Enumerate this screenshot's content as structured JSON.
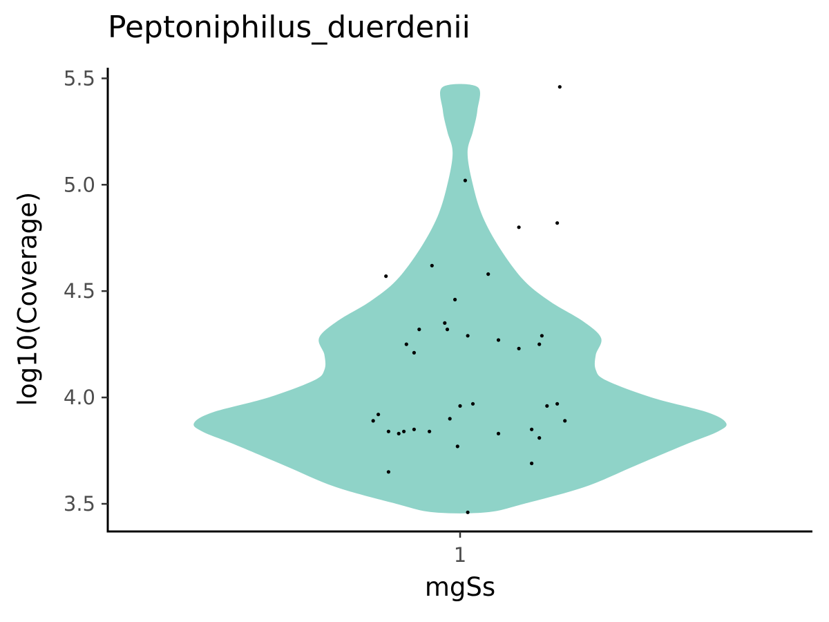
{
  "chart_data": {
    "type": "violin",
    "title": "Peptoniphilus_duerdenii",
    "xlabel": "mgSs",
    "ylabel": "log10(Coverage)",
    "categories": [
      "1"
    ],
    "ylim": [
      3.37,
      5.55
    ],
    "yticks": [
      3.5,
      4.0,
      4.5,
      5.0,
      5.5
    ],
    "ytick_labels": [
      "3.5",
      "4.0",
      "4.5",
      "5.0",
      "5.5"
    ],
    "fill_color": "#8fd3c8",
    "point_color": "#000000",
    "grid": false,
    "legend": "none",
    "density_profile": [
      {
        "y": 3.46,
        "w": 0.1
      },
      {
        "y": 3.5,
        "w": 0.24
      },
      {
        "y": 3.58,
        "w": 0.47
      },
      {
        "y": 3.68,
        "w": 0.66
      },
      {
        "y": 3.78,
        "w": 0.85
      },
      {
        "y": 3.84,
        "w": 0.97
      },
      {
        "y": 3.88,
        "w": 1.0
      },
      {
        "y": 3.93,
        "w": 0.93
      },
      {
        "y": 4.0,
        "w": 0.72
      },
      {
        "y": 4.08,
        "w": 0.55
      },
      {
        "y": 4.13,
        "w": 0.51
      },
      {
        "y": 4.2,
        "w": 0.51
      },
      {
        "y": 4.28,
        "w": 0.53
      },
      {
        "y": 4.36,
        "w": 0.46
      },
      {
        "y": 4.45,
        "w": 0.34
      },
      {
        "y": 4.55,
        "w": 0.24
      },
      {
        "y": 4.7,
        "w": 0.15
      },
      {
        "y": 4.85,
        "w": 0.085
      },
      {
        "y": 5.0,
        "w": 0.048
      },
      {
        "y": 5.15,
        "w": 0.028
      },
      {
        "y": 5.25,
        "w": 0.048
      },
      {
        "y": 5.35,
        "w": 0.065
      },
      {
        "y": 5.46,
        "w": 0.065
      }
    ],
    "points": [
      {
        "x": 1.39,
        "y": 5.46
      },
      {
        "x": 1.02,
        "y": 5.02
      },
      {
        "x": 1.23,
        "y": 4.8
      },
      {
        "x": 1.38,
        "y": 4.82
      },
      {
        "x": 0.71,
        "y": 4.57
      },
      {
        "x": 0.89,
        "y": 4.62
      },
      {
        "x": 1.11,
        "y": 4.58
      },
      {
        "x": 0.98,
        "y": 4.46
      },
      {
        "x": 0.94,
        "y": 4.35
      },
      {
        "x": 0.95,
        "y": 4.32
      },
      {
        "x": 0.84,
        "y": 4.32
      },
      {
        "x": 1.03,
        "y": 4.29
      },
      {
        "x": 1.32,
        "y": 4.29
      },
      {
        "x": 0.79,
        "y": 4.25
      },
      {
        "x": 1.15,
        "y": 4.27
      },
      {
        "x": 1.31,
        "y": 4.25
      },
      {
        "x": 1.23,
        "y": 4.23
      },
      {
        "x": 0.82,
        "y": 4.21
      },
      {
        "x": 1.0,
        "y": 3.96
      },
      {
        "x": 1.05,
        "y": 3.97
      },
      {
        "x": 1.34,
        "y": 3.96
      },
      {
        "x": 1.38,
        "y": 3.97
      },
      {
        "x": 0.68,
        "y": 3.92
      },
      {
        "x": 0.66,
        "y": 3.89
      },
      {
        "x": 0.96,
        "y": 3.9
      },
      {
        "x": 1.41,
        "y": 3.89
      },
      {
        "x": 0.72,
        "y": 3.84
      },
      {
        "x": 0.76,
        "y": 3.83
      },
      {
        "x": 0.78,
        "y": 3.84
      },
      {
        "x": 0.82,
        "y": 3.85
      },
      {
        "x": 0.88,
        "y": 3.84
      },
      {
        "x": 1.15,
        "y": 3.83
      },
      {
        "x": 1.28,
        "y": 3.85
      },
      {
        "x": 1.31,
        "y": 3.81
      },
      {
        "x": 0.99,
        "y": 3.77
      },
      {
        "x": 1.28,
        "y": 3.69
      },
      {
        "x": 0.72,
        "y": 3.65
      },
      {
        "x": 1.03,
        "y": 3.46
      }
    ]
  }
}
